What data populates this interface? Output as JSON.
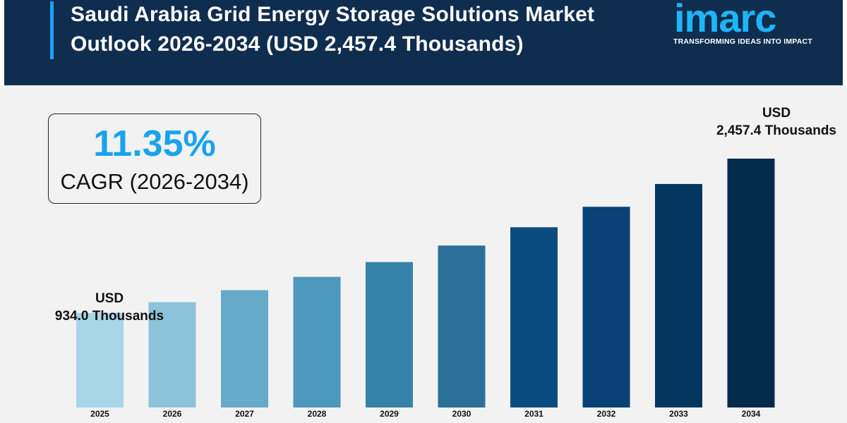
{
  "header": {
    "title_line1": "Saudi Arabia Grid Energy Storage Solutions Market",
    "title_line2": "Outlook 2026-2034 (USD 2,457.4 Thousands)"
  },
  "logo": {
    "text": "imarc",
    "tagline": "TRANSFORMING IDEAS INTO IMPACT"
  },
  "cagr": {
    "value": "11.35%",
    "label": "CAGR (2026-2034)"
  },
  "annotations": {
    "start_line1": "USD",
    "start_line2": "934.0 Thousands",
    "end_line1": "USD",
    "end_line2": "2,457.4 Thousands"
  },
  "colors": {
    "header_bg": "#0f2d4f",
    "accent": "#1da1f2",
    "bars": [
      "#a8d5e8",
      "#8cc3db",
      "#66a9c9",
      "#4e98bd",
      "#3583a8",
      "#2b7099",
      "#0b4c80",
      "#084277",
      "#053660",
      "#042a4c"
    ]
  },
  "chart_data": {
    "type": "bar",
    "categories": [
      "2025",
      "2026",
      "2027",
      "2028",
      "2029",
      "2030",
      "2031",
      "2032",
      "2033",
      "2034"
    ],
    "values": [
      934.0,
      1040,
      1158,
      1290,
      1436,
      1599,
      1780,
      1982,
      2207,
      2457.4
    ],
    "title": "Saudi Arabia Grid Energy Storage Solutions Market Outlook 2026-2034 (USD 2,457.4 Thousands)",
    "xlabel": "",
    "ylabel": "",
    "grid": false,
    "legend": "none"
  }
}
